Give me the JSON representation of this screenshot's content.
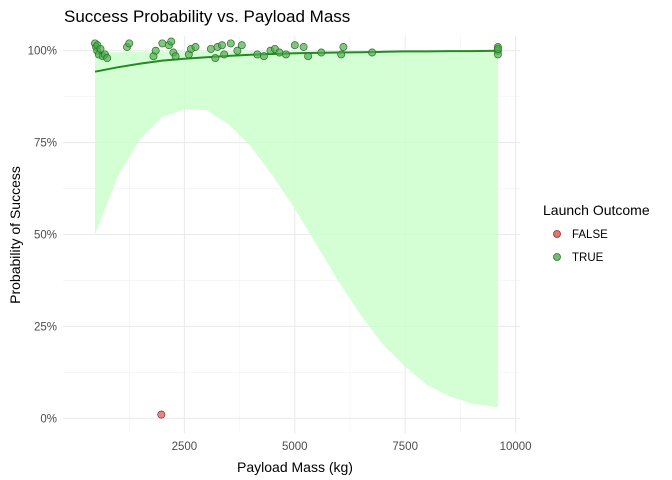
{
  "chart_data": {
    "type": "scatter",
    "title": "Success Probability vs. Payload Mass",
    "xlabel": "Payload Mass (kg)",
    "ylabel": "Probability of Success",
    "xlim": [
      -250,
      10100
    ],
    "ylim": [
      -0.04,
      1.04
    ],
    "x_ticks": [
      2500,
      5000,
      7500,
      10000
    ],
    "x_tick_labels": [
      "2500",
      "5000",
      "7500",
      "10000"
    ],
    "y_ticks": [
      0,
      0.25,
      0.5,
      0.75,
      1.0
    ],
    "y_tick_labels": [
      "0%",
      "25%",
      "50%",
      "75%",
      "100%"
    ],
    "grid": true,
    "legend": {
      "title": "Launch Outcome",
      "placement": "right",
      "entries": [
        {
          "label": "FALSE",
          "color": "#d9534f"
        },
        {
          "label": "TRUE",
          "color": "#4cae4c"
        }
      ]
    },
    "series": [
      {
        "name": "FALSE",
        "color": "#d9534f",
        "points": [
          [
            1977,
            0.01
          ]
        ]
      },
      {
        "name": "TRUE",
        "color": "#4cae4c",
        "points": [
          [
            475,
            1.02
          ],
          [
            500,
            1.01
          ],
          [
            525,
            1.0
          ],
          [
            530,
            1.015
          ],
          [
            560,
            0.99
          ],
          [
            600,
            1.005
          ],
          [
            650,
            0.985
          ],
          [
            700,
            0.99
          ],
          [
            750,
            0.98
          ],
          [
            1200,
            1.01
          ],
          [
            1250,
            1.02
          ],
          [
            1800,
            0.985
          ],
          [
            1850,
            1.0
          ],
          [
            2000,
            1.02
          ],
          [
            2150,
            1.015
          ],
          [
            2200,
            1.025
          ],
          [
            2250,
            0.995
          ],
          [
            2300,
            0.985
          ],
          [
            2600,
            0.99
          ],
          [
            2650,
            1.005
          ],
          [
            2750,
            1.01
          ],
          [
            3100,
            1.005
          ],
          [
            3200,
            0.98
          ],
          [
            3250,
            1.01
          ],
          [
            3350,
            1.015
          ],
          [
            3400,
            0.99
          ],
          [
            3550,
            1.02
          ],
          [
            3700,
            1.0
          ],
          [
            3800,
            1.015
          ],
          [
            4150,
            0.99
          ],
          [
            4300,
            0.985
          ],
          [
            4450,
            1.0
          ],
          [
            4550,
            1.005
          ],
          [
            4650,
            0.995
          ],
          [
            4800,
            0.99
          ],
          [
            5000,
            1.015
          ],
          [
            5200,
            1.01
          ],
          [
            5300,
            0.985
          ],
          [
            5600,
            0.995
          ],
          [
            6050,
            0.99
          ],
          [
            6100,
            1.01
          ],
          [
            6750,
            0.995
          ],
          [
            9600,
            1.0
          ],
          [
            9600,
            1.01
          ],
          [
            9600,
            0.99
          ],
          [
            9600,
            1.005
          ]
        ]
      }
    ],
    "fit": {
      "color": "#228b22",
      "band_color": "#ccffcc",
      "x": [
        475,
        1000,
        1500,
        2000,
        2500,
        3000,
        3500,
        4000,
        4500,
        5000,
        5500,
        6000,
        6500,
        7000,
        7500,
        8000,
        8500,
        9000,
        9600
      ],
      "y": [
        0.943,
        0.955,
        0.965,
        0.973,
        0.978,
        0.982,
        0.986,
        0.989,
        0.991,
        0.993,
        0.994,
        0.995,
        0.996,
        0.997,
        0.998,
        0.998,
        0.999,
        0.999,
        1.0
      ],
      "lower": [
        0.5,
        0.66,
        0.76,
        0.82,
        0.84,
        0.838,
        0.8,
        0.74,
        0.66,
        0.57,
        0.47,
        0.37,
        0.28,
        0.2,
        0.14,
        0.09,
        0.06,
        0.04,
        0.03
      ],
      "upper": [
        0.995,
        0.996,
        0.997,
        0.998,
        0.998,
        0.999,
        0.999,
        0.999,
        0.999,
        0.999,
        1.0,
        1.0,
        1.0,
        1.0,
        1.0,
        1.0,
        1.0,
        1.0,
        1.0
      ]
    }
  }
}
